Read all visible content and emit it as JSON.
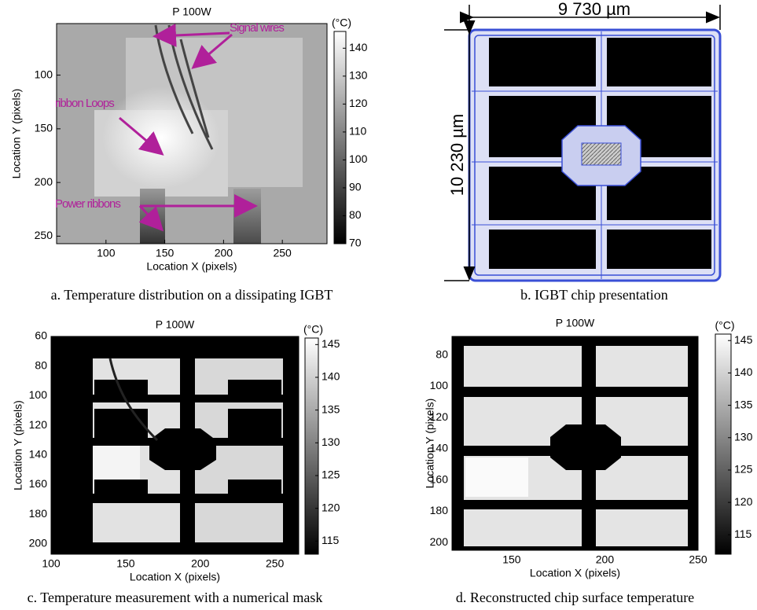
{
  "panels": [
    {
      "title": "P 100W",
      "x_label": "Location X (pixels)",
      "y_label": "Location Y (pixels)",
      "xlim": [
        58,
        288
      ],
      "xticks": [
        100,
        150,
        200,
        250
      ],
      "ylim": [
        52,
        257
      ],
      "yticks": [
        100,
        150,
        200,
        250
      ],
      "colorbar": {
        "unit": "(°C)",
        "lim": [
          70,
          146
        ],
        "ticks": [
          140,
          130,
          120,
          110,
          100,
          90,
          80,
          70
        ]
      },
      "annotations": [
        "Signal wires",
        "ribbon Loops",
        "Power ribbons"
      ],
      "caption": "a. Temperature distribution on a dissipating IGBT"
    },
    {
      "width_label": "9 730 µm",
      "height_label": "10 230 µm",
      "caption": "b. IGBT chip presentation"
    },
    {
      "title": "P 100W",
      "x_label": "Location X (pixels)",
      "y_label": "Location Y (pixels)",
      "xlim": [
        100,
        266
      ],
      "xticks": [
        100,
        150,
        200,
        250
      ],
      "ylim": [
        60,
        207
      ],
      "yticks": [
        60,
        80,
        100,
        120,
        140,
        160,
        180,
        200
      ],
      "colorbar": {
        "unit": "(°C)",
        "lim": [
          113,
          146
        ],
        "ticks": [
          145,
          140,
          135,
          130,
          125,
          120,
          115
        ]
      },
      "caption": "c. Temperature measurement with a numerical mask"
    },
    {
      "title": "P 100W",
      "x_label": "Location X (pixels)",
      "y_label": "Location Y (pixels)",
      "xlim": [
        118,
        250
      ],
      "xticks": [
        150,
        200,
        250
      ],
      "ylim": [
        68,
        205
      ],
      "yticks": [
        80,
        100,
        120,
        140,
        160,
        180,
        200
      ],
      "colorbar": {
        "unit": "(°C)",
        "lim": [
          112,
          146
        ],
        "ticks": [
          145,
          140,
          135,
          130,
          125,
          120,
          115
        ]
      },
      "caption": "d. Reconstructed chip surface temperature"
    }
  ]
}
